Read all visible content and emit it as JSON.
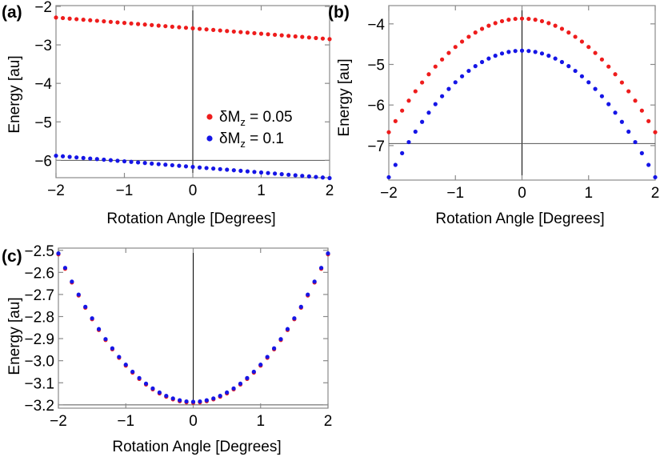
{
  "colors": {
    "series_red": "#ee1c1c",
    "series_blue": "#1515e6",
    "frame": "#8a8a8a",
    "axis_line": "#000000"
  },
  "chart_data": [
    {
      "panel_label": "(a)",
      "type": "scatter",
      "xlabel": "Rotation Angle [Degrees]",
      "ylabel": "Energy [au]",
      "xlim": [
        -2,
        2
      ],
      "ylim": [
        -6.45,
        -1.98
      ],
      "xticks": [
        -2,
        -1,
        0,
        1,
        2
      ],
      "xtick_labels": [
        "−2",
        "−1",
        "0",
        "1",
        "2"
      ],
      "yticks": [
        -2,
        -3,
        -4,
        -5,
        -6
      ],
      "ytick_labels": [
        "−2",
        "−3",
        "−4",
        "−5",
        "−6"
      ],
      "axis_crossing": {
        "x": 0,
        "y": -6
      },
      "legend": {
        "position": "right",
        "entries": [
          {
            "label_main": "δM",
            "label_sub": "z",
            "label_rest": " = 0.05",
            "series": 0
          },
          {
            "label_main": "δM",
            "label_sub": "z",
            "label_rest": " = 0.1",
            "series": 1
          }
        ]
      },
      "series": [
        {
          "color": "#ee1c1c",
          "curve": {
            "kind": "linear",
            "a": -2.57,
            "b": -0.14,
            "c": 0.0
          }
        },
        {
          "color": "#1515e6",
          "curve": {
            "kind": "linear",
            "a": -6.17,
            "b": -0.145,
            "c": 0.0
          }
        }
      ]
    },
    {
      "panel_label": "(b)",
      "type": "scatter",
      "xlabel": "Rotation Angle [Degrees]",
      "ylabel": "Energy [au]",
      "xlim": [
        -2,
        2
      ],
      "ylim": [
        -7.85,
        -3.55
      ],
      "xticks": [
        -2,
        -1,
        0,
        1,
        2
      ],
      "xtick_labels": [
        "−2",
        "−1",
        "0",
        "1",
        "2"
      ],
      "yticks": [
        -4,
        -5,
        -6,
        -7
      ],
      "ytick_labels": [
        "−4",
        "−5",
        "−6",
        "−7"
      ],
      "axis_crossing": {
        "x": 0,
        "y": -6.95
      },
      "series": [
        {
          "color": "#ee1c1c",
          "curve": {
            "kind": "quadratic",
            "a": -3.87,
            "b": 0.0,
            "c": -0.7
          }
        },
        {
          "color": "#1515e6",
          "curve": {
            "kind": "quadratic",
            "a": -4.66,
            "b": 0.0,
            "c": -0.78
          }
        }
      ]
    },
    {
      "panel_label": "(c)",
      "type": "scatter",
      "xlabel": "Rotation Angle [Degrees]",
      "ylabel": "Energy [au]",
      "xlim": [
        -2,
        2
      ],
      "ylim": [
        -3.215,
        -2.49
      ],
      "xticks": [
        -2,
        -1,
        0,
        1,
        2
      ],
      "xtick_labels": [
        "−2",
        "−1",
        "0",
        "1",
        "2"
      ],
      "yticks": [
        -2.5,
        -2.6,
        -2.7,
        -2.8,
        -2.9,
        -3.0,
        -3.1,
        -3.2
      ],
      "ytick_labels": [
        "−2.5",
        "−2.6",
        "−2.7",
        "−2.8",
        "−2.9",
        "−3.0",
        "−3.1",
        "−3.2"
      ],
      "axis_crossing": {
        "x": 0,
        "y": -3.2
      },
      "series": [
        {
          "color": "#ee1c1c",
          "curve": {
            "kind": "quadratic",
            "a": -3.19,
            "b": 0.0,
            "c": 0.168
          }
        },
        {
          "color": "#1515e6",
          "curve": {
            "kind": "quadratic",
            "a": -3.186,
            "b": 0.0,
            "c": 0.168
          }
        }
      ]
    }
  ]
}
